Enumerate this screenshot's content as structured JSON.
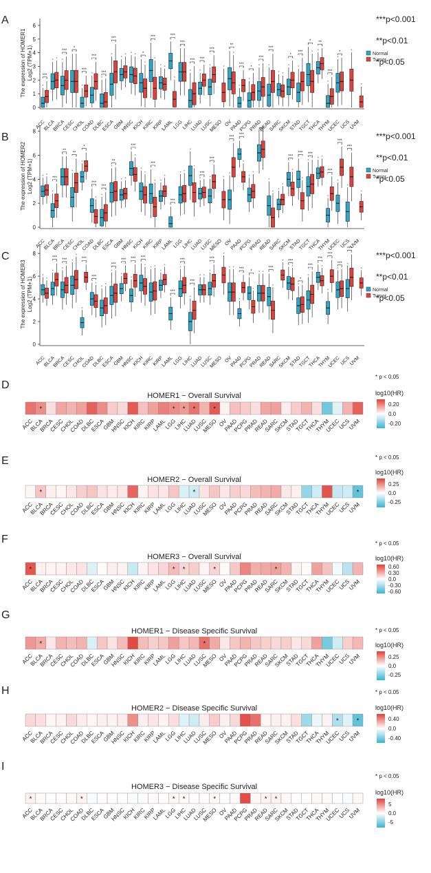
{
  "figure": {
    "colors": {
      "normal": "#2BA7C9",
      "tumor": "#E0413A",
      "heat_high": "#E0413A",
      "heat_mid": "#FFFFFF",
      "heat_low": "#3BB4D0"
    }
  },
  "chart_data": [
    {
      "type": "boxplot",
      "panel": "A",
      "ylabel": "The expression of HOMER1",
      "ylabel2": "Log2 (TPM+1)",
      "ylim": [
        0,
        6.5
      ],
      "yticks": [
        0,
        1,
        2,
        3,
        4,
        5,
        6
      ],
      "legend": {
        "title": "",
        "items": [
          "Normal",
          "Tumor"
        ]
      },
      "legend_position": "right",
      "significance_key": [
        "***p<0.001",
        "**p<0.01",
        "*p<0.05"
      ],
      "categories": [
        "ACC",
        "BLCA",
        "BRCA",
        "CESC",
        "CHOL",
        "COAD",
        "DLBC",
        "ESCA",
        "GBM",
        "HNSC",
        "KICH",
        "KIRC",
        "KIRP",
        "LAML",
        "LGG",
        "LIHC",
        "LUAD",
        "LUSC",
        "MESO",
        "OV",
        "PAAD",
        "PCPG",
        "PRAD",
        "READ",
        "SARC",
        "SKCM",
        "STAD",
        "TGCT",
        "THCA",
        "THYM",
        "UCEC",
        "UCS",
        "UVM"
      ],
      "series": [
        {
          "name": "Normal",
          "medians": [
            0.3,
            1.9,
            1.6,
            1.9,
            0.3,
            0.9,
            0.3,
            1.7,
            2.4,
            2.4,
            1.8,
            2.7,
            1.8,
            3.4,
            2.6,
            0.5,
            1.4,
            1.5,
            null,
            2.1,
            0.3,
            0.5,
            1.2,
            0.9,
            1.3,
            1.5,
            1.1,
            2.4,
            2.9,
            0.3,
            1.8,
            null,
            null
          ]
        },
        {
          "name": "Tumor",
          "medians": [
            0.8,
            2.0,
            2.0,
            1.9,
            1.2,
            1.9,
            0.4,
            2.6,
            2.6,
            2.3,
            1.4,
            1.4,
            1.7,
            0.6,
            2.6,
            1.0,
            2.0,
            2.4,
            1.1,
            1.8,
            1.6,
            1.1,
            1.5,
            1.9,
            1.2,
            2.0,
            1.9,
            1.9,
            3.2,
            0.8,
            1.9,
            2.0,
            0.4
          ]
        }
      ],
      "significance": [
        "***",
        "",
        "***",
        "*",
        "***",
        "***",
        "***",
        "***",
        "",
        "",
        "*",
        "***",
        "",
        "***",
        "***",
        "***",
        "***",
        "***",
        "",
        "**",
        "***",
        "*",
        "***",
        "***",
        "",
        "*",
        "***",
        "*",
        "**",
        "***",
        "*",
        "",
        ""
      ]
    },
    {
      "type": "boxplot",
      "panel": "B",
      "ylabel": "The expression of HOMER2",
      "ylabel2": "Log2 (TPM+1)",
      "ylim": [
        0,
        8.5
      ],
      "yticks": [
        0,
        2,
        4,
        6,
        8
      ],
      "legend": {
        "title": "",
        "items": [
          "Normal",
          "Tumor"
        ]
      },
      "legend_position": "right",
      "significance_key": [
        "***p<0.001",
        "**p<0.01",
        "*p<0.05"
      ],
      "categories": [
        "ACC",
        "BLCA",
        "BRCA",
        "CESC",
        "CHOL",
        "COAD",
        "DLBC",
        "ESCA",
        "GBM",
        "HNSC",
        "KICH",
        "KIRC",
        "KIRP",
        "LAML",
        "LGG",
        "LIHC",
        "LUAD",
        "LUSC",
        "MESO",
        "OV",
        "PAAD",
        "PCPG",
        "PRAD",
        "READ",
        "SARC",
        "SKCM",
        "STAD",
        "TGCT",
        "THCA",
        "THYM",
        "UCEC",
        "UCS",
        "UVM"
      ],
      "series": [
        {
          "name": "Normal",
          "medians": [
            3.0,
            1.4,
            4.2,
            2.5,
            4.2,
            1.8,
            0.8,
            2.9,
            2.7,
            4.9,
            3.0,
            2.8,
            2.6,
            0.3,
            2.7,
            4.3,
            2.8,
            2.6,
            null,
            2.3,
            6.1,
            2.7,
            6.2,
            1.8,
            1.9,
            4.0,
            4.0,
            3.4,
            4.5,
            1.0,
            2.0,
            1.3,
            null
          ]
        },
        {
          "name": "Tumor",
          "medians": [
            3.1,
            2.2,
            4.2,
            3.7,
            5.1,
            0.9,
            1.2,
            3.0,
            2.8,
            4.4,
            2.7,
            1.7,
            3.0,
            null,
            2.8,
            2.9,
            2.9,
            3.8,
            2.3,
            5.0,
            4.2,
            3.0,
            6.5,
            0.8,
            2.3,
            3.2,
            2.2,
            3.6,
            4.6,
            2.8,
            5.0,
            4.2,
            1.7
          ]
        }
      ],
      "significance": [
        "",
        "***",
        "**",
        "**",
        "*",
        "***",
        "***",
        "**",
        "",
        "***",
        "",
        "***",
        "",
        "***",
        "",
        "",
        "***",
        "***",
        "",
        "***",
        "***",
        "",
        "***",
        "",
        "",
        "***",
        "***",
        "***",
        "",
        "***",
        "***",
        "***",
        ""
      ]
    },
    {
      "type": "boxplot",
      "panel": "C",
      "ylabel": "The expression of HOMER3",
      "ylabel2": "Log2 (TPM+1)",
      "ylim": [
        0,
        8.8
      ],
      "yticks": [
        0,
        2,
        4,
        6,
        8
      ],
      "legend": {
        "title": "",
        "items": [
          "Normal",
          "Tumor"
        ]
      },
      "legend_position": "right",
      "significance_key": [
        "***p<0.001",
        "**p<0.01",
        "*p<0.05"
      ],
      "categories": [
        "ACC",
        "BLCA",
        "BRCA",
        "CESC",
        "CHOL",
        "COAD",
        "DLBC",
        "ESCA",
        "GBM",
        "HNSC",
        "KICH",
        "KIRC",
        "KIRP",
        "LAML",
        "LGG",
        "LIHC",
        "LUAD",
        "LUSC",
        "MESO",
        "OV",
        "PAAD",
        "PCPG",
        "PRAD",
        "READ",
        "SARC",
        "SKCM",
        "STAD",
        "TGCT",
        "THCA",
        "THYM",
        "UCEC",
        "UCS",
        "UVM"
      ],
      "series": [
        {
          "name": "Normal",
          "medians": [
            4.8,
            4.9,
            4.8,
            5.2,
            1.9,
            4.0,
            3.2,
            4.3,
            4.9,
            4.3,
            5.4,
            4.6,
            5.2,
            2.7,
            4.9,
            2.0,
            4.8,
            4.9,
            null,
            4.6,
            2.7,
            4.5,
            4.5,
            4.2,
            null,
            5.4,
            3.4,
            3.9,
            5.9,
            3.2,
            4.8,
            4.9,
            null
          ]
        },
        {
          "name": "Tumor",
          "medians": [
            4.5,
            5.7,
            5.2,
            5.7,
            5.9,
            3.8,
            3.4,
            4.5,
            5.8,
            5.6,
            5.1,
            4.7,
            5.7,
            null,
            5.2,
            3.0,
            4.8,
            5.6,
            6.1,
            4.6,
            5.0,
            3.3,
            4.5,
            3.0,
            6.1,
            5.3,
            3.5,
            4.4,
            5.6,
            6.0,
            4.9,
            5.9,
            5.4
          ]
        }
      ],
      "significance": [
        "",
        "***",
        "***",
        "",
        "***",
        "***",
        "",
        "***",
        "***",
        "***",
        "***",
        "",
        "",
        "***",
        "***",
        "***",
        "",
        "***",
        "",
        "",
        "***",
        "*",
        "",
        "***",
        "",
        "***",
        "*",
        "***",
        "***",
        "***",
        "***",
        "***",
        ""
      ]
    },
    {
      "type": "heatmap",
      "panel": "D",
      "title": "HOMER1 − Overall Survival",
      "legend_title": "log10(HR)",
      "legend_ticks": [
        0.2,
        0.0,
        -0.2
      ],
      "legend_range": [
        -0.3,
        0.3
      ],
      "pnote": "* p < 0.05",
      "categories": [
        "ACC",
        "BLCA",
        "BRCA",
        "CESC",
        "CHOL",
        "COAD",
        "DLBC",
        "ESCA",
        "GBM",
        "HNSC",
        "KICH",
        "KIRC",
        "KIRP",
        "LAML",
        "LGG",
        "LIHC",
        "LUAD",
        "LUSC",
        "MESO",
        "OV",
        "PAAD",
        "PCPG",
        "PRAD",
        "READ",
        "SARC",
        "SKCM",
        "STAD",
        "TGCT",
        "THCA",
        "THYM",
        "UCEC",
        "UCS",
        "UVM"
      ],
      "values": [
        0.22,
        0.18,
        0.05,
        0.14,
        0.12,
        0.15,
        0.25,
        0.18,
        0.08,
        0.06,
        0.26,
        0.1,
        0.15,
        0.2,
        0.18,
        0.16,
        0.22,
        0.12,
        0.26,
        0.02,
        0.1,
        0.08,
        0.05,
        0.14,
        0.15,
        0.03,
        0.08,
        0.12,
        0.05,
        -0.22,
        -0.05,
        0.12,
        0.25
      ],
      "stars": [
        0,
        1,
        0,
        0,
        0,
        0,
        0,
        0,
        0,
        0,
        0,
        0,
        0,
        0,
        1,
        1,
        1,
        0,
        1,
        0,
        0,
        0,
        0,
        0,
        0,
        0,
        0,
        0,
        0,
        0,
        0,
        0,
        0
      ]
    },
    {
      "type": "heatmap",
      "panel": "E",
      "title": "HOMER2 − Overall Survival",
      "legend_title": "log10(HR)",
      "legend_ticks": [
        0.25,
        0.0,
        -0.25
      ],
      "legend_range": [
        -0.4,
        0.4
      ],
      "pnote": "* p < 0.05",
      "categories": [
        "ACC",
        "BLCA",
        "BRCA",
        "CESC",
        "CHOL",
        "COAD",
        "DLBC",
        "ESCA",
        "GBM",
        "HNSC",
        "KICH",
        "KIRC",
        "KIRP",
        "LAML",
        "LGG",
        "LIHC",
        "LUAD",
        "LUSC",
        "MESO",
        "OV",
        "PAAD",
        "PCPG",
        "PRAD",
        "READ",
        "SARC",
        "SKCM",
        "STAD",
        "TGCT",
        "THCA",
        "THYM",
        "UCEC",
        "UCS",
        "UVM"
      ],
      "values": [
        0.02,
        0.12,
        0.03,
        0.02,
        0.05,
        0.1,
        0.12,
        0.06,
        0.04,
        0.05,
        0.32,
        0.02,
        0.06,
        0.05,
        0.12,
        -0.08,
        -0.1,
        0.06,
        0.12,
        0.05,
        0.1,
        0.08,
        0.14,
        0.16,
        0.18,
        0.05,
        0.03,
        -0.22,
        -0.1,
        0.36,
        -0.12,
        -0.1,
        -0.32
      ],
      "stars": [
        0,
        1,
        0,
        0,
        0,
        0,
        0,
        0,
        0,
        0,
        0,
        0,
        0,
        0,
        0,
        0,
        1,
        0,
        0,
        0,
        0,
        0,
        0,
        0,
        0,
        0,
        0,
        0,
        0,
        0,
        0,
        0,
        1
      ]
    },
    {
      "type": "heatmap",
      "panel": "F",
      "title": "HOMER3 − Overall Survival",
      "legend_title": "log10(HR)",
      "legend_ticks": [
        0.6,
        0.3,
        0.0,
        -0.3,
        -0.6
      ],
      "legend_range": [
        -0.7,
        0.7
      ],
      "pnote": "* p < 0.05",
      "categories": [
        "ACC",
        "BLCA",
        "BRCA",
        "CESC",
        "CHOL",
        "COAD",
        "DLBC",
        "ESCA",
        "GBM",
        "HNSC",
        "KICH",
        "KIRC",
        "KIRP",
        "LAML",
        "LGG",
        "LIHC",
        "LUAD",
        "LUSC",
        "MESO",
        "OV",
        "PAAD",
        "PCPG",
        "PRAD",
        "READ",
        "SARC",
        "SKCM",
        "STAD",
        "TGCT",
        "THCA",
        "THYM",
        "UCEC",
        "UCS",
        "UVM"
      ],
      "values": [
        0.62,
        0.06,
        0.04,
        0.05,
        0.08,
        0.1,
        -0.12,
        0.02,
        0.06,
        0.05,
        -0.2,
        0.04,
        0.1,
        0.15,
        0.25,
        0.15,
        0.18,
        0.04,
        0.16,
        0.02,
        0.2,
        0.45,
        0.3,
        0.32,
        0.35,
        0.28,
        0.04,
        0.02,
        0.35,
        0.22,
        -0.05,
        -0.25,
        0.28
      ],
      "stars": [
        1,
        0,
        0,
        0,
        0,
        0,
        0,
        0,
        0,
        0,
        0,
        0,
        0,
        0,
        1,
        1,
        0,
        0,
        1,
        0,
        0,
        0,
        0,
        0,
        1,
        0,
        0,
        0,
        0,
        0,
        0,
        0,
        0
      ]
    },
    {
      "type": "heatmap",
      "panel": "G",
      "title": "HOMER1 − Disease Specific Survival",
      "legend_title": "log10(HR)",
      "legend_ticks": [
        0.25,
        0.0,
        -0.25
      ],
      "legend_range": [
        -0.4,
        0.4
      ],
      "pnote": "* p < 0.05",
      "categories": [
        "ACC",
        "BLCA",
        "BRCA",
        "CESC",
        "CHOL",
        "COAD",
        "DLBC",
        "ESCA",
        "GBM",
        "HNSC",
        "KICH",
        "KIRC",
        "KIRP",
        "LAML",
        "LGG",
        "LIHC",
        "LUAD",
        "LUSC",
        "MESO",
        "OV",
        "PAAD",
        "PCPG",
        "PRAD",
        "READ",
        "SARC",
        "SKCM",
        "STAD",
        "TGCT",
        "THCA",
        "THYM",
        "UCEC",
        "UCS",
        "UVM"
      ],
      "values": [
        0.22,
        0.18,
        0.05,
        0.16,
        0.14,
        0.16,
        -0.08,
        0.12,
        0.06,
        0.14,
        0.38,
        0.14,
        0.1,
        0.12,
        0.2,
        0.12,
        0.15,
        0.3,
        0.18,
        0.05,
        0.12,
        0.16,
        0.12,
        0.1,
        0.08,
        0.1,
        0.05,
        0.08,
        0.2,
        -0.28,
        -0.1,
        0.1,
        0.15
      ],
      "stars": [
        0,
        1,
        0,
        0,
        0,
        0,
        0,
        0,
        0,
        0,
        0,
        0,
        0,
        0,
        0,
        0,
        0,
        1,
        0,
        0,
        0,
        0,
        0,
        0,
        0,
        0,
        0,
        0,
        0,
        0,
        0,
        0,
        0
      ]
    },
    {
      "type": "heatmap",
      "panel": "H",
      "title": "HOMER2 − Disease Specific Survival",
      "legend_title": "log10(HR)",
      "legend_ticks": [
        0.4,
        0.0,
        -0.4
      ],
      "legend_range": [
        -0.6,
        0.6
      ],
      "pnote": "* p < 0.05",
      "categories": [
        "ACC",
        "BLCA",
        "BRCA",
        "CESC",
        "CHOL",
        "COAD",
        "DLBC",
        "ESCA",
        "GBM",
        "HNSC",
        "KICH",
        "KIRC",
        "KIRP",
        "LAML",
        "LGG",
        "LIHC",
        "LUAD",
        "LUSC",
        "MESO",
        "OV",
        "PAAD",
        "PCPG",
        "PRAD",
        "READ",
        "SARC",
        "SKCM",
        "STAD",
        "TGCT",
        "THCA",
        "THYM",
        "UCEC",
        "UCS",
        "UVM"
      ],
      "values": [
        0.12,
        0.1,
        0.03,
        0.04,
        0.12,
        0.06,
        0.03,
        0.05,
        0.04,
        0.06,
        0.35,
        0.05,
        0.08,
        0.04,
        0.1,
        -0.1,
        -0.15,
        0.06,
        0.16,
        0.05,
        0.12,
        0.55,
        0.45,
        0.03,
        0.05,
        0.04,
        0.1,
        -0.3,
        -0.06,
        0.04,
        -0.25,
        -0.1,
        -0.48
      ],
      "stars": [
        0,
        0,
        0,
        0,
        0,
        0,
        0,
        0,
        0,
        0,
        0,
        0,
        0,
        0,
        0,
        0,
        0,
        0,
        0,
        0,
        0,
        0,
        0,
        0,
        0,
        0,
        0,
        0,
        0,
        0,
        1,
        0,
        1
      ]
    },
    {
      "type": "heatmap",
      "panel": "I",
      "title": "HOMER3 − Disease Specific Survival",
      "legend_title": "log10(HR)",
      "legend_ticks": [
        5,
        0,
        -5
      ],
      "legend_range": [
        -8,
        8
      ],
      "pnote": "* p < 0.05",
      "categories": [
        "ACC",
        "BLCA",
        "BRCA",
        "CESC",
        "CHOL",
        "COAD",
        "DLBC",
        "ESCA",
        "GBM",
        "HNSC",
        "KICH",
        "KIRC",
        "KIRP",
        "LAML",
        "LGG",
        "LIHC",
        "LUAD",
        "LUSC",
        "MESO",
        "OV",
        "PAAD",
        "PCPG",
        "PRAD",
        "READ",
        "SARC",
        "SKCM",
        "STAD",
        "TGCT",
        "THCA",
        "THYM",
        "UCEC",
        "UCS",
        "UVM"
      ],
      "values": [
        0.6,
        0.2,
        0.1,
        0.1,
        0.2,
        0.5,
        -0.2,
        0.1,
        0.1,
        0.1,
        -0.3,
        0.1,
        0.2,
        0.1,
        0.4,
        0.3,
        0.1,
        0.1,
        0.3,
        0.1,
        0.2,
        7.5,
        0.3,
        0.5,
        0.6,
        0.3,
        0.1,
        0.1,
        0.3,
        0.2,
        -0.1,
        -0.2,
        0.3
      ],
      "stars": [
        1,
        0,
        0,
        0,
        0,
        1,
        0,
        0,
        0,
        0,
        0,
        0,
        0,
        0,
        1,
        1,
        0,
        0,
        1,
        0,
        0,
        0,
        0,
        1,
        1,
        0,
        0,
        0,
        0,
        0,
        0,
        0,
        0
      ]
    }
  ]
}
